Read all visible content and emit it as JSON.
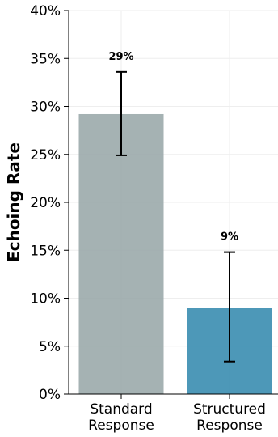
{
  "chart_data": {
    "type": "bar",
    "categories": [
      [
        "Standard",
        "Response"
      ],
      [
        "Structured",
        "Response"
      ]
    ],
    "values": [
      29.2,
      9.0
    ],
    "error_low": [
      24.9,
      3.4
    ],
    "error_high": [
      33.6,
      14.8
    ],
    "data_labels": [
      "29%",
      "9%"
    ],
    "colors": [
      "#95a5a6",
      "#2e86ab"
    ],
    "ylabel": "Echoing Rate",
    "ylim": [
      0,
      40
    ],
    "yticks": [
      0,
      5,
      10,
      15,
      20,
      25,
      30,
      35,
      40
    ],
    "ytick_labels": [
      "0%",
      "5%",
      "10%",
      "15%",
      "20%",
      "25%",
      "30%",
      "35%",
      "40%"
    ],
    "grid": true
  }
}
